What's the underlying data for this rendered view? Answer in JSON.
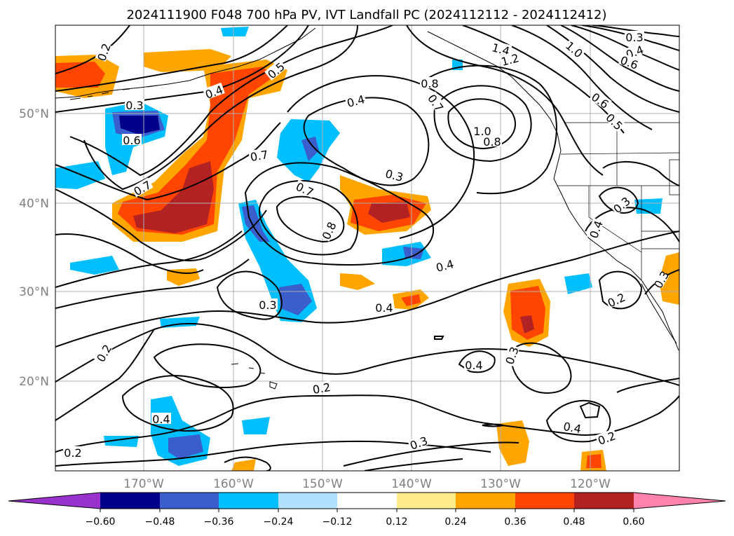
{
  "title": "2024111900 F048 700 hPa PV, IVT Landfall PC (2024112112 - 2024112412)",
  "lat_labels": [
    "50°N",
    "40°N",
    "30°N",
    "20°N"
  ],
  "lon_labels": [
    "170°W",
    "160°W",
    "150°W",
    "140°W",
    "130°W",
    "120°W"
  ],
  "colorbar": {
    "ticks": [
      "−0.60",
      "−0.48",
      "−0.36",
      "−0.24",
      "−0.12",
      "0.12",
      "0.24",
      "0.36",
      "0.48",
      "0.60"
    ],
    "colors": [
      "#9932cc",
      "#00008b",
      "#3a5fcd",
      "#00bfff",
      "#b0e2ff",
      "#ffffff",
      "#ffec8b",
      "#ffa500",
      "#ff4500",
      "#b22222",
      "#ff82ab"
    ]
  },
  "contour_labels": [
    "0.2",
    "0.3",
    "0.6",
    "0.7",
    "0.4",
    "0.5",
    "0.8",
    "0.7",
    "1.0",
    "0.8",
    "1.4",
    "1.2",
    "1.0",
    "0.3",
    "0.4",
    "0.6",
    "0.6",
    "0.5",
    "0.3",
    "0.7",
    "0.8",
    "0.4",
    "0.3",
    "0.3",
    "0.4",
    "0.3",
    "0.4",
    "0.2",
    "0.2",
    "0.4",
    "0.2",
    "0.4",
    "0.2",
    "0.3",
    "0.2",
    "0.4",
    "0.2",
    "0.3",
    "0.4",
    "0.2",
    "0.3"
  ],
  "map": {
    "lon_range": [
      -180,
      -110
    ],
    "lat_range": [
      10,
      60
    ],
    "gridlines": true,
    "contour_color": "#000000",
    "coastline_color": "#000000"
  }
}
